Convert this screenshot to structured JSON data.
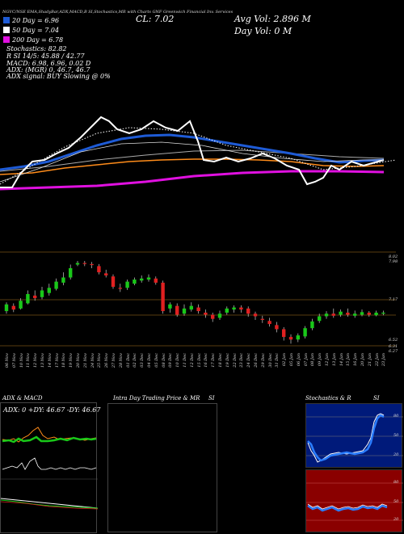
{
  "header": {
    "top_strip": "NGVC/NSE EMA,ShadyBar,ADX,MACD,B    SI,Stochastics,MR    with Charts GNF    Greenwich Financial Inv. Services",
    "close_label": "CL: 7.02",
    "avg_vol_label": "Avg Vol: 2.896  M",
    "day_vol_label": "Day Vol: 0   M"
  },
  "legend": {
    "ema20": "20  Day = 6.96",
    "ema50": "50  Day = 7.04",
    "ema200": "200  Day = 6.78",
    "stochastics": "Stochastics: 82.82",
    "si_line": "R                SI 14/5: 45.88 / 42.77",
    "macd": "MACD: 6.98, 6.96, 0.02  D",
    "adx": "ADX:                    (MGR) 0, 46.7, 46.7",
    "adx_signal": "ADX  signal:                    BUY Slowing @ 0%"
  },
  "colors": {
    "ema20": "#ffffff",
    "ema50": "#1e5bd6",
    "ema200": "#e010e0",
    "orange": "#ff8c1a",
    "up": "#19c819",
    "down": "#e02020"
  },
  "price_axis": {
    "labels": [
      "8.02",
      "7.98",
      "7.17",
      "6.52",
      "6.31",
      "6.27"
    ]
  },
  "dates": [
    "06 Nov",
    "07 Nov",
    "10 Nov",
    "11 Nov",
    "12 Nov",
    "13 Nov",
    "14 Nov",
    "17 Nov",
    "18 Nov",
    "19 Nov",
    "20 Nov",
    "21 Nov",
    "24 Nov",
    "25 Nov",
    "26 Nov",
    "27 Nov",
    "28 Nov",
    "01 Dec",
    "02 Dec",
    "03 Dec",
    "04 Dec",
    "05 Dec",
    "08 Dec",
    "09 Dec",
    "10 Dec",
    "11 Dec",
    "12 Dec",
    "15 Dec",
    "16 Dec",
    "17 Dec",
    "18 Dec",
    "19 Dec",
    "22 Dec",
    "23 Dec",
    "24 Dec",
    "26 Dec",
    "29 Dec",
    "30 Dec",
    "31 Dec",
    "02 Jan",
    "05 Jan",
    "06 Jan",
    "07 Jan",
    "08 Jan",
    "09 Jan",
    "12 Jan",
    "13 Jan",
    "14 Jan",
    "15 Jan",
    "16 Jan",
    "20 Jan",
    "21 Jan",
    "22 Jan",
    "23 Jan"
  ],
  "candles": [
    {
      "o": 7.05,
      "c": 7.18,
      "h": 7.22,
      "l": 7.0
    },
    {
      "o": 7.15,
      "c": 7.08,
      "h": 7.2,
      "l": 7.03
    },
    {
      "o": 7.1,
      "c": 7.25,
      "h": 7.3,
      "l": 7.08
    },
    {
      "o": 7.2,
      "c": 7.38,
      "h": 7.45,
      "l": 7.18
    },
    {
      "o": 7.35,
      "c": 7.3,
      "h": 7.45,
      "l": 7.25
    },
    {
      "o": 7.32,
      "c": 7.45,
      "h": 7.52,
      "l": 7.28
    },
    {
      "o": 7.4,
      "c": 7.5,
      "h": 7.58,
      "l": 7.35
    },
    {
      "o": 7.48,
      "c": 7.62,
      "h": 7.68,
      "l": 7.45
    },
    {
      "o": 7.6,
      "c": 7.7,
      "h": 7.8,
      "l": 7.55
    },
    {
      "o": 7.7,
      "c": 7.88,
      "h": 7.95,
      "l": 7.66
    },
    {
      "o": 7.95,
      "c": 7.98,
      "h": 8.02,
      "l": 7.92
    },
    {
      "o": 7.98,
      "c": 7.97,
      "h": 8.02,
      "l": 7.92
    },
    {
      "o": 7.96,
      "c": 7.94,
      "h": 8.0,
      "l": 7.88
    },
    {
      "o": 7.92,
      "c": 7.8,
      "h": 7.96,
      "l": 7.76
    },
    {
      "o": 7.78,
      "c": 7.74,
      "h": 7.85,
      "l": 7.7
    },
    {
      "o": 7.72,
      "c": 7.52,
      "h": 7.76,
      "l": 7.48
    },
    {
      "o": 7.5,
      "c": 7.48,
      "h": 7.58,
      "l": 7.42
    },
    {
      "o": 7.5,
      "c": 7.62,
      "h": 7.66,
      "l": 7.46
    },
    {
      "o": 7.58,
      "c": 7.66,
      "h": 7.7,
      "l": 7.55
    },
    {
      "o": 7.64,
      "c": 7.68,
      "h": 7.74,
      "l": 7.6
    },
    {
      "o": 7.66,
      "c": 7.7,
      "h": 7.76,
      "l": 7.62
    },
    {
      "o": 7.68,
      "c": 7.6,
      "h": 7.72,
      "l": 7.56
    },
    {
      "o": 7.6,
      "c": 7.05,
      "h": 7.64,
      "l": 7.0
    },
    {
      "o": 7.1,
      "c": 7.18,
      "h": 7.22,
      "l": 7.02
    },
    {
      "o": 7.15,
      "c": 6.98,
      "h": 7.2,
      "l": 6.94
    },
    {
      "o": 7.0,
      "c": 7.1,
      "h": 7.18,
      "l": 6.96
    },
    {
      "o": 7.08,
      "c": 7.15,
      "h": 7.22,
      "l": 7.04
    },
    {
      "o": 7.12,
      "c": 7.05,
      "h": 7.18,
      "l": 7.0
    },
    {
      "o": 7.02,
      "c": 6.98,
      "h": 7.08,
      "l": 6.92
    },
    {
      "o": 6.98,
      "c": 6.9,
      "h": 7.02,
      "l": 6.84
    },
    {
      "o": 6.92,
      "c": 7.0,
      "h": 7.06,
      "l": 6.88
    },
    {
      "o": 7.02,
      "c": 7.1,
      "h": 7.14,
      "l": 6.98
    },
    {
      "o": 7.08,
      "c": 7.12,
      "h": 7.16,
      "l": 7.02
    },
    {
      "o": 7.12,
      "c": 7.08,
      "h": 7.16,
      "l": 7.02
    },
    {
      "o": 7.1,
      "c": 7.0,
      "h": 7.14,
      "l": 6.94
    },
    {
      "o": 7.0,
      "c": 6.95,
      "h": 7.04,
      "l": 6.88
    },
    {
      "o": 6.9,
      "c": 6.88,
      "h": 6.96,
      "l": 6.82
    },
    {
      "o": 6.86,
      "c": 6.8,
      "h": 6.92,
      "l": 6.75
    },
    {
      "o": 6.78,
      "c": 6.7,
      "h": 6.84,
      "l": 6.64
    },
    {
      "o": 6.7,
      "c": 6.55,
      "h": 6.74,
      "l": 6.48
    },
    {
      "o": 6.55,
      "c": 6.5,
      "h": 6.6,
      "l": 6.42
    },
    {
      "o": 6.5,
      "c": 6.58,
      "h": 6.62,
      "l": 6.45
    },
    {
      "o": 6.56,
      "c": 6.72,
      "h": 6.76,
      "l": 6.52
    },
    {
      "o": 6.72,
      "c": 6.85,
      "h": 6.9,
      "l": 6.68
    },
    {
      "o": 6.86,
      "c": 6.95,
      "h": 7.0,
      "l": 6.82
    },
    {
      "o": 6.95,
      "c": 7.0,
      "h": 7.05,
      "l": 6.9
    },
    {
      "o": 7.0,
      "c": 6.96,
      "h": 7.1,
      "l": 6.92
    },
    {
      "o": 6.98,
      "c": 7.04,
      "h": 7.08,
      "l": 6.94
    },
    {
      "o": 7.02,
      "c": 6.98,
      "h": 7.1,
      "l": 6.94
    },
    {
      "o": 6.96,
      "c": 7.0,
      "h": 7.06,
      "l": 6.92
    },
    {
      "o": 6.98,
      "c": 7.03,
      "h": 7.08,
      "l": 6.95
    },
    {
      "o": 7.02,
      "c": 6.98,
      "h": 7.05,
      "l": 6.94
    },
    {
      "o": 6.97,
      "c": 7.02,
      "h": 7.06,
      "l": 6.95
    },
    {
      "o": 7.0,
      "c": 7.02,
      "h": 7.06,
      "l": 6.97
    }
  ],
  "panels": {
    "adx_title": "ADX  & MACD",
    "adx_values": "ADX: 0   +DY: 46.67  -DY: 46.67",
    "intraday_title": "Intra Day Trading Price  & MR",
    "si_title": "SI",
    "stoch_title": "Stochastics & R",
    "stoch_si": "SI",
    "stoch_ticks": [
      "80",
      "50",
      "20"
    ],
    "si_ticks": [
      "80",
      "50",
      "20"
    ]
  }
}
